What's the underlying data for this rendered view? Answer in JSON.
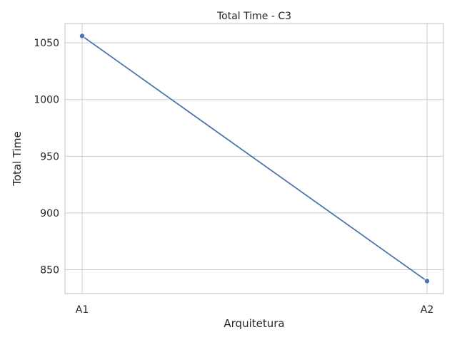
{
  "colors": {
    "series": "#4c72b0",
    "grid": "#cccccc",
    "text": "#262626",
    "background": "#ffffff"
  },
  "chart_data": {
    "type": "line",
    "title": "Total Time - C3",
    "xlabel": "Arquitetura",
    "ylabel": "Total Time",
    "categories": [
      "A1",
      "A2"
    ],
    "series": [
      {
        "values": [
          1056,
          840
        ]
      }
    ],
    "yticks": [
      850,
      900,
      950,
      1000,
      1050
    ],
    "ylim": [
      829,
      1067
    ],
    "grid": true,
    "markers": true
  }
}
